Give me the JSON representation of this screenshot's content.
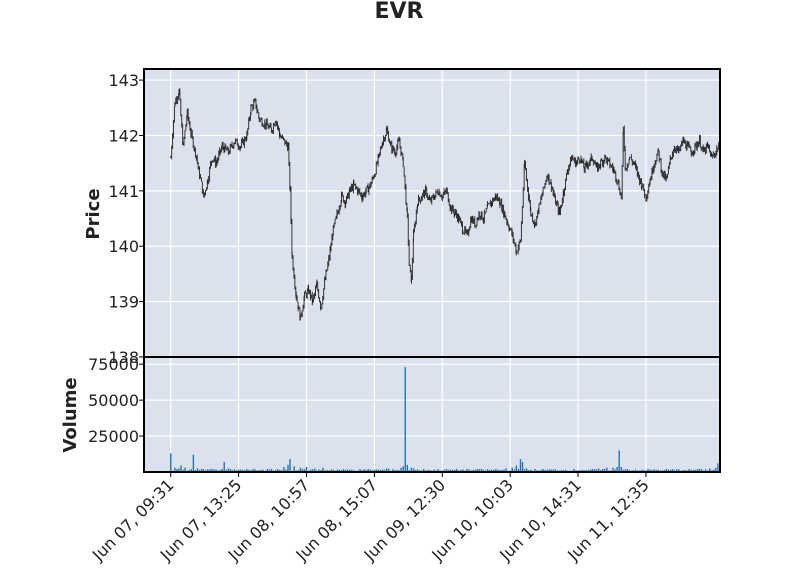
{
  "chart_data": {
    "type": "candlestick",
    "title": "EVR",
    "price_panel": {
      "ylabel": "Price",
      "ylim": [
        138,
        143.2
      ],
      "yticks": [
        "143",
        "142",
        "141",
        "140",
        "139",
        "138"
      ],
      "series": [
        {
          "t": 0,
          "v": 141.6
        },
        {
          "t": 2,
          "v": 142.6
        },
        {
          "t": 4,
          "v": 142.8
        },
        {
          "t": 6,
          "v": 141.8
        },
        {
          "t": 8,
          "v": 142.4
        },
        {
          "t": 10,
          "v": 142.0
        },
        {
          "t": 12,
          "v": 141.7
        },
        {
          "t": 14,
          "v": 141.3
        },
        {
          "t": 16,
          "v": 140.9
        },
        {
          "t": 18,
          "v": 141.2
        },
        {
          "t": 20,
          "v": 141.6
        },
        {
          "t": 22,
          "v": 141.5
        },
        {
          "t": 25,
          "v": 141.8
        },
        {
          "t": 28,
          "v": 141.7
        },
        {
          "t": 31,
          "v": 141.9
        },
        {
          "t": 34,
          "v": 141.8
        },
        {
          "t": 37,
          "v": 142.0
        },
        {
          "t": 39,
          "v": 142.5
        },
        {
          "t": 41,
          "v": 142.6
        },
        {
          "t": 43,
          "v": 142.3
        },
        {
          "t": 46,
          "v": 142.2
        },
        {
          "t": 49,
          "v": 142.1
        },
        {
          "t": 51,
          "v": 142.3
        },
        {
          "t": 53,
          "v": 142.0
        },
        {
          "t": 55,
          "v": 141.9
        },
        {
          "t": 57,
          "v": 141.8
        },
        {
          "t": 58,
          "v": 141.0
        },
        {
          "t": 59,
          "v": 139.8
        },
        {
          "t": 61,
          "v": 139.1
        },
        {
          "t": 63,
          "v": 138.7
        },
        {
          "t": 65,
          "v": 139.1
        },
        {
          "t": 67,
          "v": 139.2
        },
        {
          "t": 69,
          "v": 139.0
        },
        {
          "t": 71,
          "v": 139.3
        },
        {
          "t": 73,
          "v": 138.9
        },
        {
          "t": 75,
          "v": 139.4
        },
        {
          "t": 77,
          "v": 139.8
        },
        {
          "t": 79,
          "v": 140.3
        },
        {
          "t": 81,
          "v": 140.6
        },
        {
          "t": 83,
          "v": 140.9
        },
        {
          "t": 85,
          "v": 140.8
        },
        {
          "t": 87,
          "v": 141.0
        },
        {
          "t": 89,
          "v": 141.1
        },
        {
          "t": 91,
          "v": 141.0
        },
        {
          "t": 93,
          "v": 140.9
        },
        {
          "t": 95,
          "v": 141.0
        },
        {
          "t": 97,
          "v": 141.1
        },
        {
          "t": 99,
          "v": 141.3
        },
        {
          "t": 101,
          "v": 141.6
        },
        {
          "t": 103,
          "v": 141.9
        },
        {
          "t": 105,
          "v": 142.1
        },
        {
          "t": 107,
          "v": 141.8
        },
        {
          "t": 109,
          "v": 141.7
        },
        {
          "t": 111,
          "v": 141.9
        },
        {
          "t": 113,
          "v": 141.5
        },
        {
          "t": 115,
          "v": 140.5
        },
        {
          "t": 116,
          "v": 139.6
        },
        {
          "t": 117,
          "v": 139.4
        },
        {
          "t": 118,
          "v": 140.2
        },
        {
          "t": 120,
          "v": 140.8
        },
        {
          "t": 122,
          "v": 140.9
        },
        {
          "t": 124,
          "v": 141.0
        },
        {
          "t": 126,
          "v": 140.8
        },
        {
          "t": 128,
          "v": 140.9
        },
        {
          "t": 130,
          "v": 141.0
        },
        {
          "t": 132,
          "v": 140.9
        },
        {
          "t": 134,
          "v": 141.0
        },
        {
          "t": 136,
          "v": 140.7
        },
        {
          "t": 138,
          "v": 140.6
        },
        {
          "t": 140,
          "v": 140.5
        },
        {
          "t": 142,
          "v": 140.3
        },
        {
          "t": 144,
          "v": 140.2
        },
        {
          "t": 146,
          "v": 140.5
        },
        {
          "t": 148,
          "v": 140.4
        },
        {
          "t": 150,
          "v": 140.6
        },
        {
          "t": 152,
          "v": 140.5
        },
        {
          "t": 154,
          "v": 140.7
        },
        {
          "t": 156,
          "v": 140.8
        },
        {
          "t": 158,
          "v": 140.9
        },
        {
          "t": 160,
          "v": 140.8
        },
        {
          "t": 162,
          "v": 140.6
        },
        {
          "t": 164,
          "v": 140.4
        },
        {
          "t": 166,
          "v": 140.2
        },
        {
          "t": 168,
          "v": 139.9
        },
        {
          "t": 170,
          "v": 140.1
        },
        {
          "t": 172,
          "v": 141.5
        },
        {
          "t": 173,
          "v": 141.2
        },
        {
          "t": 175,
          "v": 140.6
        },
        {
          "t": 177,
          "v": 140.4
        },
        {
          "t": 179,
          "v": 140.7
        },
        {
          "t": 181,
          "v": 141.0
        },
        {
          "t": 183,
          "v": 141.3
        },
        {
          "t": 185,
          "v": 141.1
        },
        {
          "t": 187,
          "v": 140.8
        },
        {
          "t": 189,
          "v": 140.6
        },
        {
          "t": 191,
          "v": 141.0
        },
        {
          "t": 193,
          "v": 141.4
        },
        {
          "t": 195,
          "v": 141.6
        },
        {
          "t": 197,
          "v": 141.5
        },
        {
          "t": 199,
          "v": 141.6
        },
        {
          "t": 201,
          "v": 141.4
        },
        {
          "t": 203,
          "v": 141.5
        },
        {
          "t": 205,
          "v": 141.6
        },
        {
          "t": 207,
          "v": 141.4
        },
        {
          "t": 209,
          "v": 141.5
        },
        {
          "t": 211,
          "v": 141.6
        },
        {
          "t": 213,
          "v": 141.5
        },
        {
          "t": 215,
          "v": 141.4
        },
        {
          "t": 217,
          "v": 141.2
        },
        {
          "t": 219,
          "v": 140.9
        },
        {
          "t": 220,
          "v": 142.1
        },
        {
          "t": 221,
          "v": 141.4
        },
        {
          "t": 223,
          "v": 141.6
        },
        {
          "t": 225,
          "v": 141.5
        },
        {
          "t": 227,
          "v": 141.3
        },
        {
          "t": 229,
          "v": 141.1
        },
        {
          "t": 231,
          "v": 140.9
        },
        {
          "t": 233,
          "v": 141.2
        },
        {
          "t": 235,
          "v": 141.5
        },
        {
          "t": 237,
          "v": 141.7
        },
        {
          "t": 239,
          "v": 141.3
        },
        {
          "t": 241,
          "v": 141.2
        },
        {
          "t": 243,
          "v": 141.6
        },
        {
          "t": 245,
          "v": 141.8
        },
        {
          "t": 247,
          "v": 141.7
        },
        {
          "t": 249,
          "v": 141.9
        },
        {
          "t": 251,
          "v": 141.8
        },
        {
          "t": 253,
          "v": 141.7
        },
        {
          "t": 255,
          "v": 141.8
        },
        {
          "t": 257,
          "v": 141.9
        },
        {
          "t": 259,
          "v": 141.7
        },
        {
          "t": 261,
          "v": 141.8
        },
        {
          "t": 263,
          "v": 141.6
        },
        {
          "t": 265,
          "v": 141.7
        },
        {
          "t": 267,
          "v": 141.9
        }
      ]
    },
    "volume_panel": {
      "ylabel": "Volume",
      "ylim": [
        0,
        80000
      ],
      "yticks": [
        "75000",
        "50000",
        "25000"
      ],
      "bars": [
        {
          "t": 0,
          "v": 13000
        },
        {
          "t": 2,
          "v": 3000
        },
        {
          "t": 4,
          "v": 2500
        },
        {
          "t": 5,
          "v": 4500
        },
        {
          "t": 7,
          "v": 3000
        },
        {
          "t": 10,
          "v": 2000
        },
        {
          "t": 11,
          "v": 12000
        },
        {
          "t": 13,
          "v": 2500
        },
        {
          "t": 16,
          "v": 2000
        },
        {
          "t": 20,
          "v": 2200
        },
        {
          "t": 22,
          "v": 1800
        },
        {
          "t": 26,
          "v": 7000
        },
        {
          "t": 28,
          "v": 2500
        },
        {
          "t": 33,
          "v": 1800
        },
        {
          "t": 38,
          "v": 1500
        },
        {
          "t": 45,
          "v": 1500
        },
        {
          "t": 52,
          "v": 2000
        },
        {
          "t": 55,
          "v": 3500
        },
        {
          "t": 57,
          "v": 5000
        },
        {
          "t": 58,
          "v": 9000
        },
        {
          "t": 60,
          "v": 4000
        },
        {
          "t": 63,
          "v": 3000
        },
        {
          "t": 66,
          "v": 3500
        },
        {
          "t": 70,
          "v": 2500
        },
        {
          "t": 74,
          "v": 3000
        },
        {
          "t": 78,
          "v": 1800
        },
        {
          "t": 85,
          "v": 1500
        },
        {
          "t": 95,
          "v": 1500
        },
        {
          "t": 105,
          "v": 2500
        },
        {
          "t": 108,
          "v": 2000
        },
        {
          "t": 112,
          "v": 3000
        },
        {
          "t": 113,
          "v": 4000
        },
        {
          "t": 114,
          "v": 73000
        },
        {
          "t": 115,
          "v": 5000
        },
        {
          "t": 117,
          "v": 3000
        },
        {
          "t": 118,
          "v": 2500
        },
        {
          "t": 125,
          "v": 1500
        },
        {
          "t": 135,
          "v": 1500
        },
        {
          "t": 145,
          "v": 1800
        },
        {
          "t": 150,
          "v": 2000
        },
        {
          "t": 158,
          "v": 2000
        },
        {
          "t": 163,
          "v": 2500
        },
        {
          "t": 166,
          "v": 3000
        },
        {
          "t": 168,
          "v": 4500
        },
        {
          "t": 170,
          "v": 9000
        },
        {
          "t": 171,
          "v": 7000
        },
        {
          "t": 173,
          "v": 2500
        },
        {
          "t": 180,
          "v": 1500
        },
        {
          "t": 190,
          "v": 1500
        },
        {
          "t": 200,
          "v": 1500
        },
        {
          "t": 208,
          "v": 2500
        },
        {
          "t": 212,
          "v": 3000
        },
        {
          "t": 215,
          "v": 3000
        },
        {
          "t": 217,
          "v": 3500
        },
        {
          "t": 218,
          "v": 15000
        },
        {
          "t": 219,
          "v": 3500
        },
        {
          "t": 222,
          "v": 2000
        },
        {
          "t": 230,
          "v": 1500
        },
        {
          "t": 240,
          "v": 1500
        },
        {
          "t": 250,
          "v": 1500
        },
        {
          "t": 258,
          "v": 2000
        },
        {
          "t": 262,
          "v": 2500
        },
        {
          "t": 265,
          "v": 3000
        },
        {
          "t": 266,
          "v": 6000
        },
        {
          "t": 267,
          "v": 15000
        }
      ]
    },
    "x_range": [
      -13,
      267
    ],
    "x_ticks": [
      {
        "t": 0,
        "label": "Jun 07, 09:31"
      },
      {
        "t": 33,
        "label": "Jun 07, 13:25"
      },
      {
        "t": 66,
        "label": "Jun 08, 10:57"
      },
      {
        "t": 99,
        "label": "Jun 08, 15:07"
      },
      {
        "t": 132,
        "label": "Jun 09, 12:30"
      },
      {
        "t": 165,
        "label": "Jun 10, 10:03"
      },
      {
        "t": 198,
        "label": "Jun 10, 14:31"
      },
      {
        "t": 231,
        "label": "Jun 11, 12:35"
      }
    ],
    "grid": true,
    "colors": {
      "panel_bg": "#dce1ee",
      "candle": "#222222",
      "volume": "#1f77b4",
      "grid": "#ffffff"
    }
  }
}
